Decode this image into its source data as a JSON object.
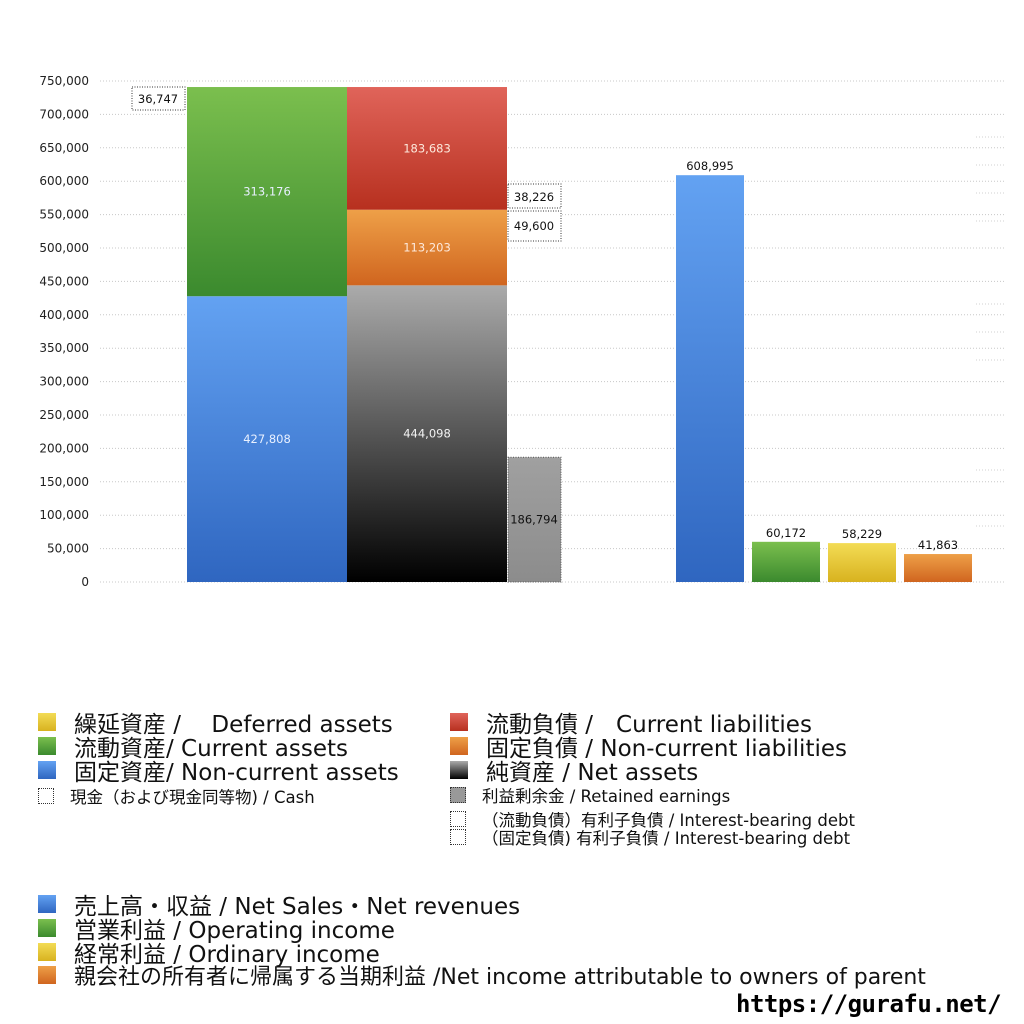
{
  "chart_data": [
    {
      "type": "bar",
      "subtype": "balance-sheet-stacked",
      "ylim": [
        0,
        750000
      ],
      "yticks": [
        "0",
        "50,000",
        "100,000",
        "150,000",
        "200,000",
        "250,000",
        "300,000",
        "350,000",
        "400,000",
        "450,000",
        "500,000",
        "550,000",
        "600,000",
        "650,000",
        "700,000",
        "750,000"
      ],
      "grid": true,
      "assets": [
        {
          "name": "固定資産/ Non-current assets",
          "value": 427808,
          "label": "427,808"
        },
        {
          "name": "流動資産/ Current assets",
          "value": 313176,
          "label": "313,176"
        }
      ],
      "liabilities_equity": [
        {
          "name": "純資産 / Net assets",
          "value": 444098,
          "label": "444,098"
        },
        {
          "name": "固定負債 / Non-current liabilities",
          "value": 113203,
          "label": "113,203"
        },
        {
          "name": "流動負債 / Current liabilities",
          "value": 183683,
          "label": "183,683"
        }
      ],
      "retained_earnings": {
        "value": 186794,
        "label": "186,794"
      },
      "cash": {
        "value": 36747,
        "label": "36,747"
      },
      "interest_bearing_debt_current": {
        "value": 38226,
        "label": "38,226"
      },
      "interest_bearing_debt_noncurrent": {
        "value": 49600,
        "label": "49,600"
      }
    },
    {
      "type": "bar",
      "subtype": "income-statement",
      "ylim": [
        0,
        750000
      ],
      "values": [
        608995,
        60172,
        58229,
        41863
      ],
      "labels": [
        "608,995",
        "60,172",
        "58,229",
        "41,863"
      ]
    }
  ],
  "colors": {
    "blue": "#3c78d8",
    "green": "#4a9a3a",
    "yellow": "#e3c32c",
    "red": "#cc3d2f",
    "orange": "#e07a2a",
    "black": "#222222",
    "gray": "#999999"
  },
  "legend": {
    "deferred_assets": "繰延資産 /　 Deferred assets",
    "current_assets": "流動資産/ Current assets",
    "noncurrent_assets": "固定資産/ Non-current assets",
    "cash": "現金（および現金同等物) / Cash",
    "current_liabilities": "流動負債 /　Current liabilities",
    "noncurrent_liabilities": "固定負債 / Non-current liabilities",
    "net_assets": "純資産 / Net assets",
    "retained_earnings": "利益剰余金 / Retained earnings",
    "ibd_current": "（流動負債）有利子負債 / Interest-bearing debt",
    "ibd_noncurrent": "（固定負債) 有利子負債 / Interest-bearing debt",
    "net_sales": "売上高・収益 / Net Sales・Net revenues",
    "operating_income": "営業利益 / Operating income",
    "ordinary_income": "経常利益 / Ordinary income",
    "net_income": "親会社の所有者に帰属する当期利益 /Net income attributable to owners of parent"
  },
  "site_url": "https://gurafu.net/"
}
